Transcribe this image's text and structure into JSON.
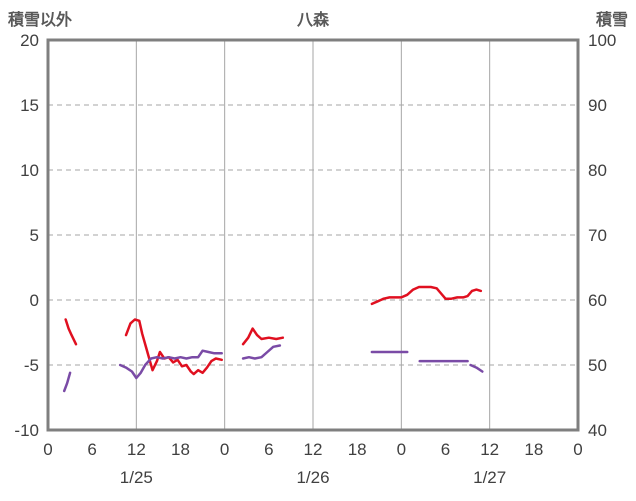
{
  "header": {
    "left_axis_title": "積雪以外",
    "chart_title": "八森",
    "right_axis_title": "積雪"
  },
  "chart_data": {
    "type": "line",
    "title": "八森",
    "left_axis": {
      "label": "積雪以外",
      "min": -10,
      "max": 20,
      "ticks": [
        20,
        15,
        10,
        5,
        0,
        -5,
        -10
      ],
      "gridline_values": [
        15,
        10,
        5,
        0,
        -5
      ]
    },
    "right_axis": {
      "label": "積雪",
      "min": 40,
      "max": 100,
      "ticks": [
        100,
        90,
        80,
        70,
        60,
        50,
        40
      ]
    },
    "x_axis": {
      "min": 0,
      "max": 72,
      "tick_step": 6,
      "tick_labels": [
        "0",
        "6",
        "12",
        "18",
        "0",
        "6",
        "12",
        "18",
        "0",
        "6",
        "12",
        "18",
        "0"
      ],
      "gridline_hours": [
        12,
        24,
        36,
        48,
        60
      ],
      "day_labels": [
        {
          "text": "1/25",
          "hour": 12
        },
        {
          "text": "1/26",
          "hour": 36
        },
        {
          "text": "1/27",
          "hour": 60
        }
      ]
    },
    "styles": {
      "gridline_color": "#a6a6a6",
      "border_color": "#7f7f7f",
      "text_color": "#404040",
      "grid_dash": "5 4"
    },
    "series": [
      {
        "name": "red-line",
        "color": "#e01020",
        "width": 2.5,
        "segments": [
          [
            [
              2.4,
              -1.5
            ],
            [
              2.8,
              -2.2
            ],
            [
              3.2,
              -2.7
            ],
            [
              3.8,
              -3.4
            ]
          ],
          [
            [
              10.6,
              -2.7
            ],
            [
              11.2,
              -1.8
            ],
            [
              11.8,
              -1.5
            ],
            [
              12.4,
              -1.6
            ],
            [
              12.8,
              -2.6
            ],
            [
              13.4,
              -3.8
            ],
            [
              13.8,
              -4.6
            ],
            [
              14.2,
              -5.4
            ],
            [
              14.8,
              -4.7
            ],
            [
              15.2,
              -4.0
            ],
            [
              15.8,
              -4.5
            ],
            [
              16.4,
              -4.4
            ],
            [
              17.0,
              -4.8
            ],
            [
              17.6,
              -4.6
            ],
            [
              18.2,
              -5.1
            ],
            [
              18.8,
              -5.0
            ],
            [
              19.4,
              -5.5
            ],
            [
              19.8,
              -5.7
            ],
            [
              20.4,
              -5.4
            ],
            [
              21.0,
              -5.6
            ],
            [
              21.6,
              -5.2
            ],
            [
              22.2,
              -4.7
            ],
            [
              22.8,
              -4.5
            ],
            [
              23.6,
              -4.6
            ]
          ],
          [
            [
              26.5,
              -3.4
            ],
            [
              27.2,
              -2.9
            ],
            [
              27.8,
              -2.2
            ],
            [
              28.4,
              -2.7
            ],
            [
              29.0,
              -3.0
            ],
            [
              30.0,
              -2.9
            ],
            [
              31.0,
              -3.0
            ],
            [
              31.9,
              -2.9
            ]
          ],
          [
            [
              44.0,
              -0.3
            ],
            [
              44.8,
              -0.1
            ],
            [
              45.6,
              0.1
            ],
            [
              46.4,
              0.2
            ],
            [
              47.2,
              0.2
            ],
            [
              48.0,
              0.2
            ],
            [
              48.8,
              0.4
            ],
            [
              49.6,
              0.8
            ],
            [
              50.4,
              1.0
            ],
            [
              51.2,
              1.0
            ],
            [
              52.0,
              1.0
            ],
            [
              52.8,
              0.9
            ],
            [
              53.4,
              0.5
            ],
            [
              54.0,
              0.1
            ],
            [
              54.8,
              0.1
            ],
            [
              55.6,
              0.2
            ],
            [
              56.4,
              0.2
            ],
            [
              57.0,
              0.3
            ],
            [
              57.6,
              0.7
            ],
            [
              58.2,
              0.8
            ],
            [
              58.8,
              0.7
            ]
          ]
        ]
      },
      {
        "name": "purple-line",
        "color": "#7a4ba6",
        "width": 2.5,
        "segments": [
          [
            [
              2.2,
              -7.0
            ],
            [
              2.6,
              -6.4
            ],
            [
              3.0,
              -5.6
            ]
          ],
          [
            [
              9.8,
              -5.0
            ],
            [
              10.6,
              -5.2
            ],
            [
              11.4,
              -5.5
            ],
            [
              12.0,
              -6.0
            ],
            [
              12.6,
              -5.6
            ],
            [
              13.2,
              -5.0
            ],
            [
              14.0,
              -4.5
            ],
            [
              14.8,
              -4.4
            ],
            [
              15.6,
              -4.5
            ],
            [
              16.4,
              -4.4
            ],
            [
              17.2,
              -4.5
            ],
            [
              18.0,
              -4.4
            ],
            [
              18.8,
              -4.5
            ],
            [
              19.6,
              -4.4
            ],
            [
              20.4,
              -4.4
            ],
            [
              21.0,
              -3.9
            ],
            [
              21.8,
              -4.0
            ],
            [
              22.6,
              -4.1
            ],
            [
              23.6,
              -4.1
            ]
          ],
          [
            [
              26.5,
              -4.5
            ],
            [
              27.3,
              -4.4
            ],
            [
              28.1,
              -4.5
            ],
            [
              29.0,
              -4.4
            ],
            [
              29.8,
              -4.0
            ],
            [
              30.6,
              -3.6
            ],
            [
              31.5,
              -3.5
            ]
          ],
          [
            [
              44.0,
              -4.0
            ],
            [
              45.2,
              -4.0
            ],
            [
              46.4,
              -4.0
            ],
            [
              47.6,
              -4.0
            ],
            [
              48.8,
              -4.0
            ]
          ],
          [
            [
              50.5,
              -4.7
            ],
            [
              52.0,
              -4.7
            ],
            [
              53.5,
              -4.7
            ],
            [
              55.0,
              -4.7
            ],
            [
              56.0,
              -4.7
            ],
            [
              57.0,
              -4.7
            ]
          ],
          [
            [
              57.4,
              -5.0
            ],
            [
              58.2,
              -5.2
            ],
            [
              59.0,
              -5.5
            ]
          ]
        ]
      }
    ]
  }
}
